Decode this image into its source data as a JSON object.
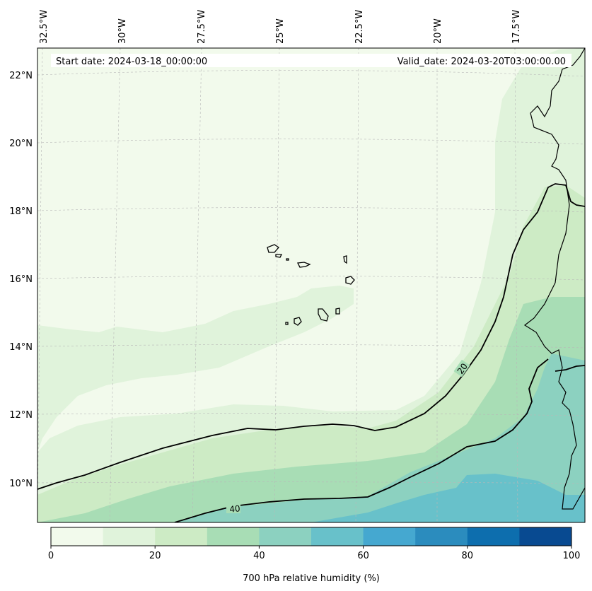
{
  "header": {
    "start_date": "Start date: 2024-03-18_00:00:00",
    "valid_date": "Valid_date: 2024-03-20T03:00:00.00"
  },
  "lon_labels": [
    "32.5°W",
    "30°W",
    "27.5°W",
    "25°W",
    "22.5°W",
    "20°W",
    "17.5°W"
  ],
  "lat_labels": [
    "22°N",
    "20°N",
    "18°N",
    "16°N",
    "14°N",
    "12°N",
    "10°N"
  ],
  "contour_labels": [
    "20",
    "40"
  ],
  "colorbar": {
    "title": "700 hPa relative humidity (%)",
    "tick_labels": [
      "0",
      "20",
      "40",
      "60",
      "80",
      "100"
    ],
    "colors": [
      "#f2faec",
      "#e0f3db",
      "#cdebc5",
      "#a8ddb5",
      "#8cd1c0",
      "#68c1ca",
      "#45a8d0",
      "#2b8cbe",
      "#0d6eae",
      "#084a91"
    ]
  },
  "chart_data": {
    "type": "heatmap",
    "title": "",
    "variable": "700 hPa relative humidity (%)",
    "xlabel": "",
    "ylabel": "",
    "lon_range": [
      "33°W",
      "15.5°W"
    ],
    "lat_range": [
      "8.9°N",
      "22.8°N"
    ],
    "colorbar_range": [
      0,
      100
    ],
    "colorbar_step": 10,
    "contour_levels": [
      20,
      40
    ],
    "grid": true
  }
}
